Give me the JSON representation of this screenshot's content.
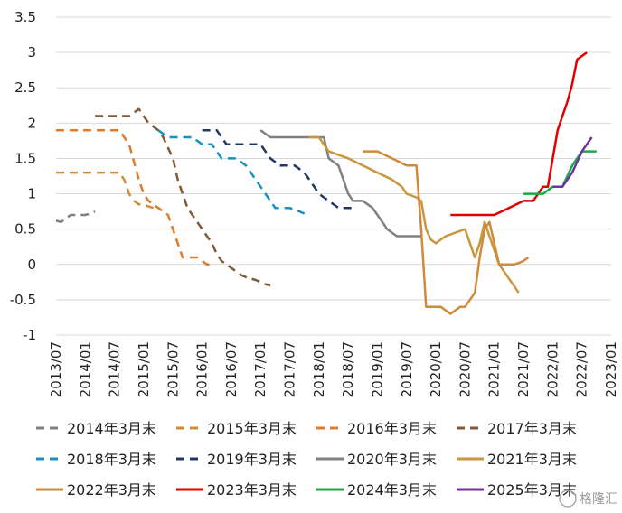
{
  "chart_data": {
    "type": "line",
    "title": "",
    "xlabel": "",
    "ylabel": "",
    "ylim": [
      -1,
      3.5
    ],
    "y_ticks": [
      "3.5",
      "3",
      "2.5",
      "2",
      "1.5",
      "1",
      "0.5",
      "0",
      "-0.5",
      "-1"
    ],
    "x_ticks": [
      "2013/07",
      "2014/01",
      "2014/07",
      "2015/01",
      "2015/07",
      "2016/01",
      "2016/07",
      "2017/01",
      "2017/07",
      "2018/01",
      "2018/07",
      "2019/01",
      "2019/07",
      "2020/01",
      "2020/07",
      "2021/01",
      "2021/07",
      "2022/01",
      "2022/07",
      "2023/01"
    ],
    "grid": "horizontal",
    "legend_position": "bottom",
    "series": [
      {
        "name": "2014年3月末",
        "color": "#7f7f7f",
        "dashed": true,
        "points": [
          [
            "2013/07",
            0.62
          ],
          [
            "2013/08",
            0.6
          ],
          [
            "2013/09",
            0.65
          ],
          [
            "2013/10",
            0.7
          ],
          [
            "2013/11",
            0.7
          ],
          [
            "2013/12",
            0.7
          ],
          [
            "2014/01",
            0.7
          ],
          [
            "2014/02",
            0.72
          ],
          [
            "2014/03",
            0.75
          ]
        ]
      },
      {
        "name": "2015年3月末",
        "color": "#d08a3a",
        "dashed": true,
        "points": [
          [
            "2013/07",
            1.3
          ],
          [
            "2014/01",
            1.3
          ],
          [
            "2014/06",
            1.3
          ],
          [
            "2014/07",
            1.3
          ],
          [
            "2014/08",
            1.3
          ],
          [
            "2014/09",
            1.2
          ],
          [
            "2014/10",
            1.0
          ],
          [
            "2014/11",
            0.9
          ],
          [
            "2014/12",
            0.85
          ],
          [
            "2015/01",
            0.85
          ],
          [
            "2015/02",
            0.82
          ],
          [
            "2015/03",
            0.8
          ]
        ]
      },
      {
        "name": "2016年3月末",
        "color": "#e07b2a",
        "dashed": true,
        "points": [
          [
            "2013/07",
            1.9
          ],
          [
            "2014/01",
            1.9
          ],
          [
            "2014/06",
            1.9
          ],
          [
            "2014/07",
            1.9
          ],
          [
            "2014/08",
            1.9
          ],
          [
            "2014/09",
            1.8
          ],
          [
            "2014/10",
            1.7
          ],
          [
            "2014/11",
            1.45
          ],
          [
            "2014/12",
            1.2
          ],
          [
            "2015/01",
            1.0
          ],
          [
            "2015/02",
            0.9
          ],
          [
            "2015/03",
            0.85
          ],
          [
            "2015/04",
            0.8
          ],
          [
            "2015/05",
            0.75
          ],
          [
            "2015/06",
            0.7
          ],
          [
            "2015/07",
            0.5
          ],
          [
            "2015/08",
            0.3
          ],
          [
            "2015/09",
            0.1
          ],
          [
            "2015/10",
            0.1
          ],
          [
            "2015/11",
            0.1
          ],
          [
            "2015/12",
            0.1
          ],
          [
            "2016/01",
            0.05
          ],
          [
            "2016/02",
            0.0
          ],
          [
            "2016/03",
            0.0
          ]
        ]
      },
      {
        "name": "2017年3月末",
        "color": "#7f5b3a",
        "dashed": true,
        "points": [
          [
            "2014/03",
            2.1
          ],
          [
            "2014/04",
            2.1
          ],
          [
            "2014/05",
            2.1
          ],
          [
            "2014/06",
            2.1
          ],
          [
            "2014/07",
            2.1
          ],
          [
            "2014/08",
            2.1
          ],
          [
            "2014/09",
            2.1
          ],
          [
            "2014/10",
            2.1
          ],
          [
            "2014/11",
            2.15
          ],
          [
            "2014/12",
            2.2
          ],
          [
            "2015/01",
            2.1
          ],
          [
            "2015/02",
            2.0
          ],
          [
            "2015/03",
            1.95
          ],
          [
            "2015/04",
            1.9
          ],
          [
            "2015/05",
            1.8
          ],
          [
            "2015/06",
            1.65
          ],
          [
            "2015/07",
            1.5
          ],
          [
            "2015/08",
            1.2
          ],
          [
            "2015/09",
            1.0
          ],
          [
            "2015/10",
            0.8
          ],
          [
            "2015/11",
            0.7
          ],
          [
            "2015/12",
            0.6
          ],
          [
            "2016/01",
            0.5
          ],
          [
            "2016/02",
            0.4
          ],
          [
            "2016/03",
            0.3
          ],
          [
            "2016/04",
            0.15
          ],
          [
            "2016/05",
            0.05
          ],
          [
            "2016/06",
            0.0
          ],
          [
            "2016/07",
            -0.05
          ],
          [
            "2016/08",
            -0.1
          ],
          [
            "2016/09",
            -0.15
          ],
          [
            "2016/10",
            -0.18
          ],
          [
            "2016/11",
            -0.2
          ],
          [
            "2016/12",
            -0.22
          ],
          [
            "2017/01",
            -0.25
          ],
          [
            "2017/02",
            -0.28
          ],
          [
            "2017/03",
            -0.3
          ]
        ]
      },
      {
        "name": "2018年3月末",
        "color": "#1a8fc0",
        "dashed": true,
        "points": [
          [
            "2015/04",
            1.9
          ],
          [
            "2015/05",
            1.85
          ],
          [
            "2015/06",
            1.8
          ],
          [
            "2015/07",
            1.8
          ],
          [
            "2015/08",
            1.8
          ],
          [
            "2015/09",
            1.8
          ],
          [
            "2015/10",
            1.8
          ],
          [
            "2015/11",
            1.8
          ],
          [
            "2015/12",
            1.75
          ],
          [
            "2016/01",
            1.7
          ],
          [
            "2016/02",
            1.7
          ],
          [
            "2016/03",
            1.7
          ],
          [
            "2016/04",
            1.6
          ],
          [
            "2016/05",
            1.5
          ],
          [
            "2016/06",
            1.5
          ],
          [
            "2016/07",
            1.5
          ],
          [
            "2016/08",
            1.5
          ],
          [
            "2016/09",
            1.45
          ],
          [
            "2016/10",
            1.4
          ],
          [
            "2016/11",
            1.3
          ],
          [
            "2016/12",
            1.2
          ],
          [
            "2017/01",
            1.1
          ],
          [
            "2017/02",
            1.0
          ],
          [
            "2017/03",
            0.9
          ],
          [
            "2017/04",
            0.8
          ],
          [
            "2017/05",
            0.8
          ],
          [
            "2017/06",
            0.8
          ],
          [
            "2017/07",
            0.8
          ],
          [
            "2017/08",
            0.77
          ],
          [
            "2017/09",
            0.75
          ],
          [
            "2017/10",
            0.72
          ]
        ]
      },
      {
        "name": "2019年3月末",
        "color": "#203864",
        "dashed": true,
        "points": [
          [
            "2016/01",
            1.9
          ],
          [
            "2016/02",
            1.9
          ],
          [
            "2016/03",
            1.9
          ],
          [
            "2016/04",
            1.9
          ],
          [
            "2016/05",
            1.8
          ],
          [
            "2016/06",
            1.7
          ],
          [
            "2016/07",
            1.7
          ],
          [
            "2016/08",
            1.7
          ],
          [
            "2016/09",
            1.7
          ],
          [
            "2016/10",
            1.7
          ],
          [
            "2016/11",
            1.7
          ],
          [
            "2016/12",
            1.7
          ],
          [
            "2017/01",
            1.7
          ],
          [
            "2017/02",
            1.6
          ],
          [
            "2017/03",
            1.5
          ],
          [
            "2017/04",
            1.45
          ],
          [
            "2017/05",
            1.4
          ],
          [
            "2017/06",
            1.4
          ],
          [
            "2017/07",
            1.4
          ],
          [
            "2017/08",
            1.4
          ],
          [
            "2017/09",
            1.35
          ],
          [
            "2017/10",
            1.3
          ],
          [
            "2017/11",
            1.2
          ],
          [
            "2017/12",
            1.1
          ],
          [
            "2018/01",
            1.0
          ],
          [
            "2018/02",
            0.95
          ],
          [
            "2018/03",
            0.9
          ],
          [
            "2018/04",
            0.85
          ],
          [
            "2018/05",
            0.8
          ],
          [
            "2018/06",
            0.8
          ],
          [
            "2018/07",
            0.8
          ],
          [
            "2018/08",
            0.8
          ]
        ]
      },
      {
        "name": "2020年3月末",
        "color": "#808080",
        "dashed": false,
        "points": [
          [
            "2017/01",
            1.9
          ],
          [
            "2017/02",
            1.85
          ],
          [
            "2017/03",
            1.8
          ],
          [
            "2017/07",
            1.8
          ],
          [
            "2017/10",
            1.8
          ],
          [
            "2018/01",
            1.8
          ],
          [
            "2018/02",
            1.8
          ],
          [
            "2018/03",
            1.5
          ],
          [
            "2018/04",
            1.45
          ],
          [
            "2018/05",
            1.4
          ],
          [
            "2018/06",
            1.2
          ],
          [
            "2018/07",
            1.0
          ],
          [
            "2018/08",
            0.9
          ],
          [
            "2018/09",
            0.9
          ],
          [
            "2018/10",
            0.9
          ],
          [
            "2018/11",
            0.85
          ],
          [
            "2018/12",
            0.8
          ],
          [
            "2019/01",
            0.7
          ],
          [
            "2019/02",
            0.6
          ],
          [
            "2019/03",
            0.5
          ],
          [
            "2019/04",
            0.45
          ],
          [
            "2019/05",
            0.4
          ],
          [
            "2019/06",
            0.4
          ],
          [
            "2019/07",
            0.4
          ],
          [
            "2019/08",
            0.4
          ],
          [
            "2019/09",
            0.4
          ],
          [
            "2019/10",
            0.4
          ]
        ]
      },
      {
        "name": "2021年3月末",
        "color": "#c8963c",
        "dashed": false,
        "points": [
          [
            "2017/11",
            1.8
          ],
          [
            "2017/12",
            1.8
          ],
          [
            "2018/01",
            1.8
          ],
          [
            "2018/02",
            1.7
          ],
          [
            "2018/03",
            1.6
          ],
          [
            "2018/07",
            1.5
          ],
          [
            "2018/10",
            1.4
          ],
          [
            "2019/01",
            1.3
          ],
          [
            "2019/04",
            1.2
          ],
          [
            "2019/06",
            1.1
          ],
          [
            "2019/07",
            1.0
          ],
          [
            "2019/09",
            0.95
          ],
          [
            "2019/10",
            0.9
          ],
          [
            "2019/11",
            0.5
          ],
          [
            "2019/12",
            0.35
          ],
          [
            "2020/01",
            0.3
          ],
          [
            "2020/02",
            0.35
          ],
          [
            "2020/03",
            0.4
          ],
          [
            "2020/07",
            0.5
          ],
          [
            "2020/08",
            0.3
          ],
          [
            "2020/09",
            0.1
          ],
          [
            "2020/10",
            0.3
          ],
          [
            "2020/11",
            0.6
          ],
          [
            "2020/12",
            0.4
          ],
          [
            "2021/01",
            0.2
          ],
          [
            "2021/02",
            0.0
          ],
          [
            "2021/03",
            -0.1
          ],
          [
            "2021/04",
            -0.2
          ],
          [
            "2021/05",
            -0.3
          ],
          [
            "2021/06",
            -0.4
          ]
        ]
      },
      {
        "name": "2022年3月末",
        "color": "#d08a3a",
        "dashed": false,
        "points": [
          [
            "2018/10",
            1.6
          ],
          [
            "2018/11",
            1.6
          ],
          [
            "2019/01",
            1.6
          ],
          [
            "2019/04",
            1.5
          ],
          [
            "2019/07",
            1.4
          ],
          [
            "2019/09",
            1.4
          ],
          [
            "2019/10",
            0.5
          ],
          [
            "2019/11",
            -0.6
          ],
          [
            "2019/12",
            -0.6
          ],
          [
            "2020/01",
            -0.6
          ],
          [
            "2020/02",
            -0.6
          ],
          [
            "2020/03",
            -0.65
          ],
          [
            "2020/04",
            -0.7
          ],
          [
            "2020/05",
            -0.65
          ],
          [
            "2020/06",
            -0.6
          ],
          [
            "2020/07",
            -0.6
          ],
          [
            "2020/08",
            -0.5
          ],
          [
            "2020/09",
            -0.4
          ],
          [
            "2020/10",
            0.1
          ],
          [
            "2020/11",
            0.5
          ],
          [
            "2020/12",
            0.6
          ],
          [
            "2021/01",
            0.3
          ],
          [
            "2021/02",
            0.0
          ],
          [
            "2021/03",
            0.0
          ],
          [
            "2021/04",
            0.0
          ],
          [
            "2021/05",
            0.0
          ],
          [
            "2021/06",
            0.02
          ],
          [
            "2021/07",
            0.05
          ],
          [
            "2021/08",
            0.1
          ]
        ]
      },
      {
        "name": "2023年3月末",
        "color": "#e00000",
        "dashed": false,
        "points": [
          [
            "2020/04",
            0.7
          ],
          [
            "2020/07",
            0.7
          ],
          [
            "2020/10",
            0.7
          ],
          [
            "2021/01",
            0.7
          ],
          [
            "2021/04",
            0.8
          ],
          [
            "2021/07",
            0.9
          ],
          [
            "2021/09",
            0.9
          ],
          [
            "2021/10",
            1.0
          ],
          [
            "2021/11",
            1.1
          ],
          [
            "2021/12",
            1.1
          ],
          [
            "2022/01",
            1.5
          ],
          [
            "2022/02",
            1.9
          ],
          [
            "2022/03",
            2.1
          ],
          [
            "2022/04",
            2.3
          ],
          [
            "2022/05",
            2.55
          ],
          [
            "2022/06",
            2.9
          ],
          [
            "2022/07",
            2.95
          ],
          [
            "2022/08",
            3.0
          ]
        ]
      },
      {
        "name": "2024年3月末",
        "color": "#1aa84a",
        "dashed": false,
        "points": [
          [
            "2021/07",
            1.0
          ],
          [
            "2021/08",
            1.0
          ],
          [
            "2021/09",
            1.0
          ],
          [
            "2021/10",
            1.0
          ],
          [
            "2021/11",
            1.0
          ],
          [
            "2021/12",
            1.05
          ],
          [
            "2022/01",
            1.1
          ],
          [
            "2022/02",
            1.1
          ],
          [
            "2022/03",
            1.1
          ],
          [
            "2022/04",
            1.25
          ],
          [
            "2022/05",
            1.4
          ],
          [
            "2022/06",
            1.5
          ],
          [
            "2022/07",
            1.6
          ],
          [
            "2022/08",
            1.6
          ],
          [
            "2022/09",
            1.6
          ],
          [
            "2022/10",
            1.6
          ]
        ]
      },
      {
        "name": "2025年3月末",
        "color": "#7030a0",
        "dashed": false,
        "points": [
          [
            "2022/01",
            1.1
          ],
          [
            "2022/02",
            1.1
          ],
          [
            "2022/03",
            1.1
          ],
          [
            "2022/04",
            1.2
          ],
          [
            "2022/05",
            1.3
          ],
          [
            "2022/06",
            1.45
          ],
          [
            "2022/07",
            1.6
          ],
          [
            "2022/08",
            1.7
          ],
          [
            "2022/09",
            1.8
          ]
        ]
      }
    ]
  },
  "watermark": "格隆汇"
}
